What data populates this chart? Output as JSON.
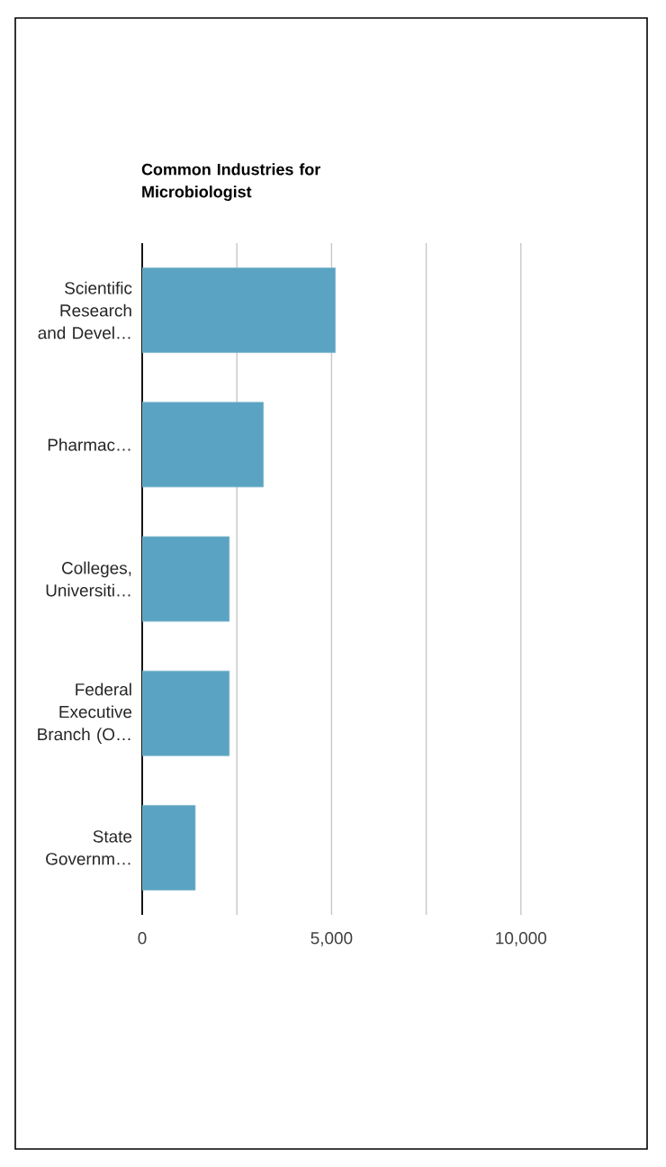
{
  "chart_data": {
    "type": "bar",
    "orientation": "horizontal",
    "title": "Common Industries for Microbiologist",
    "categories": [
      "Scientific Research and Devel…",
      "Pharmac…",
      "Colleges, Universiti…",
      "Federal Executive Branch (O…",
      "State Governm…"
    ],
    "values": [
      5100,
      3200,
      2300,
      2300,
      1400
    ],
    "color": "#5ba3c2",
    "xlim": [
      0,
      10000
    ],
    "xticks": [
      0,
      {
        "value": 2500,
        "label": null
      },
      {
        "value": 5000,
        "label": "5,000"
      },
      {
        "value": 7500,
        "label": null
      },
      {
        "value": 10000,
        "label": "10,000"
      }
    ],
    "grid": "x"
  }
}
